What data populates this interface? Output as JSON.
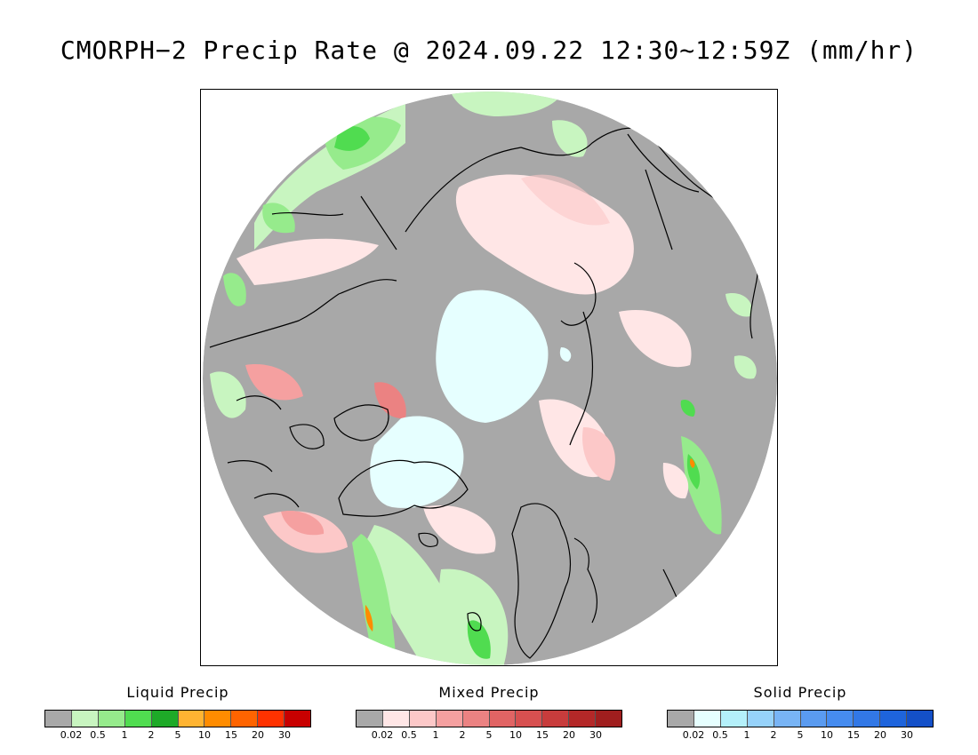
{
  "title": "CMORPH−2 Precip Rate @ 2024.09.22 12:30~12:59Z (mm/hr)",
  "map": {
    "projection": "north-polar-stereographic",
    "background_color": "#a8a8a8",
    "coastline_color": "#000000"
  },
  "legends": [
    {
      "id": "liquid",
      "title": "Liquid Precip",
      "colors": [
        "#a8a8a8",
        "#c8f5c0",
        "#96eb8c",
        "#50dc50",
        "#1eaa28",
        "#ffb432",
        "#ff8c00",
        "#ff6400",
        "#ff3200",
        "#c80000"
      ],
      "ticks": [
        "0.02",
        "0.5",
        "1",
        "2",
        "5",
        "10",
        "15",
        "20",
        "30"
      ]
    },
    {
      "id": "mixed",
      "title": "Mixed Precip",
      "colors": [
        "#a8a8a8",
        "#ffe6e6",
        "#fcc8c8",
        "#f5a0a0",
        "#eb8282",
        "#e16464",
        "#d75050",
        "#c83c3c",
        "#b42828",
        "#a01e1e"
      ],
      "ticks": [
        "0.02",
        "0.5",
        "1",
        "2",
        "5",
        "10",
        "15",
        "20",
        "30"
      ]
    },
    {
      "id": "solid",
      "title": "Solid Precip",
      "colors": [
        "#a8a8a8",
        "#e6ffff",
        "#b4f0fa",
        "#96d2fa",
        "#78b4f5",
        "#5a9bf0",
        "#468cf0",
        "#3278e6",
        "#1e64dc",
        "#1450c8"
      ],
      "ticks": [
        "0.02",
        "0.5",
        "1",
        "2",
        "5",
        "10",
        "15",
        "20",
        "30"
      ]
    }
  ]
}
